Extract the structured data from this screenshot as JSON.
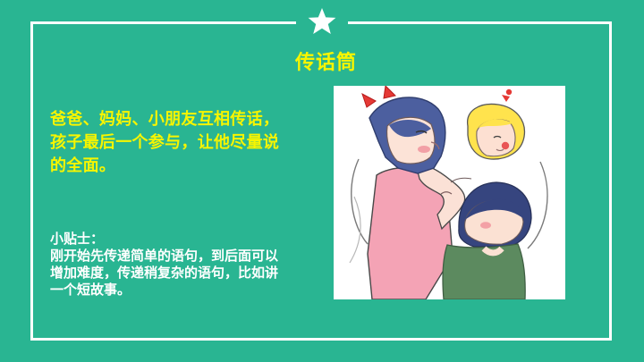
{
  "title": "传话筒",
  "main_text": "爸爸、妈妈、小朋友互相传话，孩子最后一个参与，让他尽量说的全面。",
  "tips": {
    "label": "小贴士：",
    "text": "刚开始先传递简单的语句，到后面可以增加难度，传递稍复杂的语句，比如讲一个短故事。"
  },
  "icons": {
    "top": "star-icon",
    "illustration": "whisper-family-illustration"
  },
  "colors": {
    "background": "#29b592",
    "accent_text": "#f7f500",
    "body_text": "#ffffff",
    "border": "#ffffff"
  }
}
